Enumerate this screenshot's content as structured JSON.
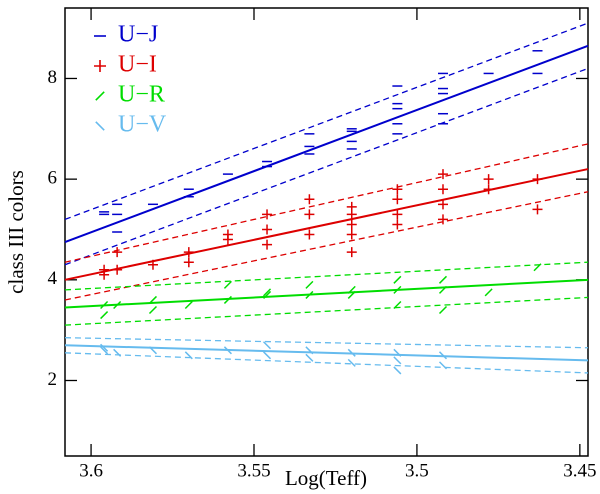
{
  "chart_data": {
    "type": "scatter",
    "xlabel": "Log(Teff)",
    "ylabel": "class III colors",
    "xlim": [
      3.608,
      3.4475
    ],
    "ylim": [
      0.5,
      9.4
    ],
    "xticks": [
      3.6,
      3.55,
      3.5,
      3.45
    ],
    "yticks": [
      2,
      4,
      6,
      8
    ],
    "legend": "upper left",
    "series": [
      {
        "name": "U−J",
        "color": "#0000cc",
        "marker": "dash",
        "x": [
          3.596,
          3.596,
          3.592,
          3.592,
          3.592,
          3.581,
          3.57,
          3.57,
          3.558,
          3.546,
          3.546,
          3.533,
          3.533,
          3.533,
          3.52,
          3.52,
          3.52,
          3.52,
          3.506,
          3.506,
          3.506,
          3.506,
          3.506,
          3.492,
          3.492,
          3.492,
          3.492,
          3.492,
          3.478,
          3.463,
          3.463
        ],
        "values": [
          5.3,
          5.35,
          4.95,
          5.3,
          5.5,
          5.5,
          5.65,
          5.8,
          6.1,
          6.25,
          6.35,
          6.5,
          6.65,
          6.9,
          6.6,
          6.75,
          6.95,
          7.0,
          6.9,
          7.1,
          7.4,
          7.5,
          7.85,
          7.1,
          7.3,
          7.7,
          7.8,
          8.1,
          8.1,
          8.1,
          8.55
        ],
        "fit": [
          4.75,
          8.65
        ],
        "fit_upper": [
          5.2,
          9.1
        ],
        "fit_lower": [
          4.3,
          8.2
        ]
      },
      {
        "name": "U−I",
        "color": "#dd0000",
        "marker": "plus",
        "x": [
          3.596,
          3.596,
          3.592,
          3.592,
          3.581,
          3.57,
          3.57,
          3.558,
          3.558,
          3.546,
          3.546,
          3.546,
          3.533,
          3.533,
          3.533,
          3.52,
          3.52,
          3.52,
          3.52,
          3.52,
          3.506,
          3.506,
          3.506,
          3.506,
          3.492,
          3.492,
          3.492,
          3.492,
          3.478,
          3.478,
          3.463,
          3.463
        ],
        "values": [
          4.1,
          4.2,
          4.2,
          4.55,
          4.3,
          4.35,
          4.55,
          4.8,
          4.9,
          4.7,
          5.0,
          5.3,
          4.9,
          5.3,
          5.6,
          4.55,
          4.9,
          5.1,
          5.3,
          5.45,
          5.1,
          5.3,
          5.6,
          5.8,
          5.2,
          5.5,
          5.8,
          6.1,
          5.8,
          6.0,
          5.4,
          6.0
        ],
        "fit": [
          4.0,
          6.2
        ],
        "fit_upper": [
          4.35,
          6.7
        ],
        "fit_lower": [
          3.6,
          5.75
        ]
      },
      {
        "name": "U−R",
        "color": "#00dd00",
        "marker": "slash",
        "x": [
          3.596,
          3.596,
          3.592,
          3.581,
          3.581,
          3.57,
          3.558,
          3.558,
          3.546,
          3.546,
          3.533,
          3.533,
          3.52,
          3.52,
          3.506,
          3.506,
          3.506,
          3.492,
          3.492,
          3.492,
          3.478,
          3.463
        ],
        "values": [
          3.3,
          3.5,
          3.5,
          3.4,
          3.6,
          3.5,
          3.6,
          3.9,
          3.7,
          3.75,
          3.7,
          3.9,
          3.7,
          3.8,
          3.5,
          3.8,
          4.0,
          3.4,
          3.8,
          4.0,
          3.75,
          4.25
        ],
        "fit": [
          3.45,
          4.0
        ],
        "fit_upper": [
          3.8,
          4.35
        ],
        "fit_lower": [
          3.1,
          3.65
        ]
      },
      {
        "name": "U−V",
        "color": "#66bbee",
        "marker": "backslash",
        "x": [
          3.596,
          3.596,
          3.592,
          3.581,
          3.57,
          3.558,
          3.546,
          3.546,
          3.533,
          3.533,
          3.52,
          3.52,
          3.506,
          3.506,
          3.506,
          3.492,
          3.492
        ],
        "values": [
          2.6,
          2.65,
          2.55,
          2.6,
          2.5,
          2.6,
          2.5,
          2.7,
          2.45,
          2.6,
          2.35,
          2.55,
          2.2,
          2.4,
          2.55,
          2.3,
          2.5
        ],
        "fit": [
          2.7,
          2.4
        ],
        "fit_upper": [
          2.85,
          2.65
        ],
        "fit_lower": [
          2.55,
          2.15
        ]
      }
    ]
  }
}
